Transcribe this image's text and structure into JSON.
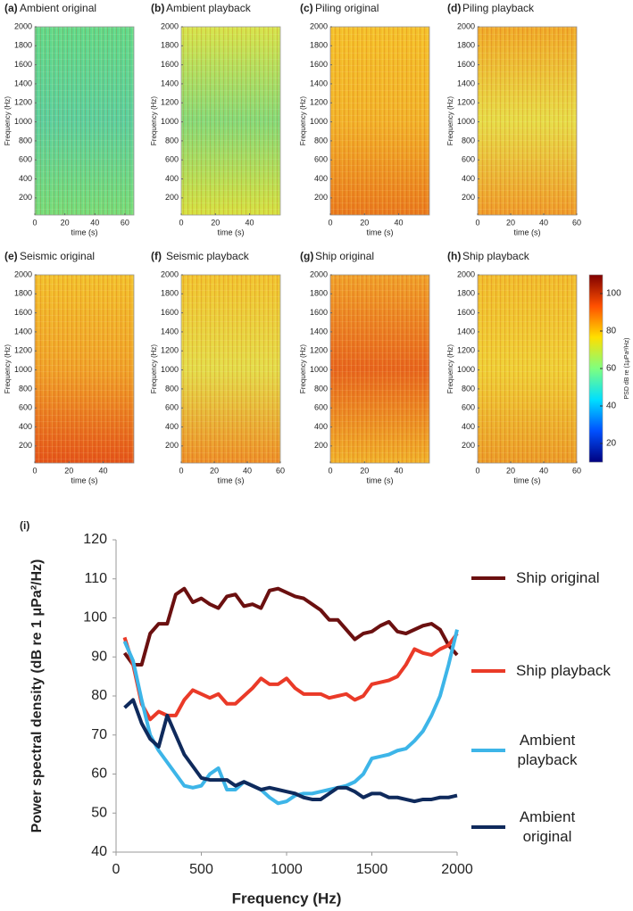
{
  "chart_data": [
    {
      "type": "spectrogram",
      "panel": "(a)",
      "title": "Ambient original",
      "xlabel": "time (s)",
      "ylabel": "Frequency (Hz)",
      "xlim": [
        0,
        66
      ],
      "xticks": [
        0,
        20,
        40,
        60
      ],
      "ylim": [
        20,
        2000
      ],
      "yticks": [
        200,
        400,
        600,
        800,
        1000,
        1200,
        1400,
        1600,
        1800,
        2000
      ],
      "colors": [
        "#5fd98a",
        "#58cfa0",
        "#74dc7a"
      ]
    },
    {
      "type": "spectrogram",
      "panel": "(b)",
      "title": "Ambient playback",
      "xlabel": "time (s)",
      "ylabel": "Frequency (Hz)",
      "xlim": [
        0,
        58
      ],
      "xticks": [
        0,
        20,
        40
      ],
      "ylim": [
        20,
        2000
      ],
      "yticks": [
        200,
        400,
        600,
        800,
        1000,
        1200,
        1400,
        1600,
        1800,
        2000
      ],
      "colors": [
        "#d7e34a",
        "#82d97a",
        "#d6e040"
      ]
    },
    {
      "type": "spectrogram",
      "panel": "(c)",
      "title": "Piling original",
      "xlabel": "time (s)",
      "ylabel": "Frequency (Hz)",
      "xlim": [
        0,
        58
      ],
      "xticks": [
        0,
        20,
        40
      ],
      "ylim": [
        20,
        2000
      ],
      "yticks": [
        200,
        400,
        600,
        800,
        1000,
        1200,
        1400,
        1600,
        1800,
        2000
      ],
      "colors": [
        "#f4c02a",
        "#f2b22a",
        "#e9791e"
      ]
    },
    {
      "type": "spectrogram",
      "panel": "(d)",
      "title": "Piling playback",
      "xlabel": "time (s)",
      "ylabel": "Frequency (Hz)",
      "xlim": [
        0,
        60
      ],
      "xticks": [
        0,
        20,
        40,
        60
      ],
      "ylim": [
        20,
        2000
      ],
      "yticks": [
        200,
        400,
        600,
        800,
        1000,
        1200,
        1400,
        1600,
        1800,
        2000
      ],
      "colors": [
        "#f0a828",
        "#e6dc48",
        "#ef9a2a"
      ]
    },
    {
      "type": "spectrogram",
      "panel": "(e)",
      "title": "Seismic original",
      "xlabel": "time (s)",
      "ylabel": "Frequency (Hz)",
      "xlim": [
        0,
        58
      ],
      "xticks": [
        0,
        20,
        40
      ],
      "ylim": [
        20,
        2000
      ],
      "yticks": [
        200,
        400,
        600,
        800,
        1000,
        1200,
        1400,
        1600,
        1800,
        2000
      ],
      "colors": [
        "#f2c02c",
        "#f0a22a",
        "#e4531a"
      ]
    },
    {
      "type": "spectrogram",
      "panel": "(f)",
      "title": "Seismic playback",
      "xlabel": "time (s)",
      "ylabel": "Frequency (Hz)",
      "xlim": [
        0,
        60
      ],
      "xticks": [
        0,
        20,
        40,
        60
      ],
      "ylim": [
        20,
        2000
      ],
      "yticks": [
        200,
        400,
        600,
        800,
        1000,
        1200,
        1400,
        1600,
        1800,
        2000
      ],
      "colors": [
        "#f1c22e",
        "#e3dc4a",
        "#ed8e28"
      ]
    },
    {
      "type": "spectrogram",
      "panel": "(g)",
      "title": "Ship original",
      "xlabel": "time (s)",
      "ylabel": "Frequency (Hz)",
      "xlim": [
        0,
        58
      ],
      "xticks": [
        0,
        20,
        40
      ],
      "ylim": [
        20,
        2000
      ],
      "yticks": [
        200,
        400,
        600,
        800,
        1000,
        1200,
        1400,
        1600,
        1800,
        2000
      ],
      "colors": [
        "#f0a02a",
        "#e7651e",
        "#f0b02a"
      ]
    },
    {
      "type": "spectrogram",
      "panel": "(h)",
      "title": "Ship playback",
      "xlabel": "time (s)",
      "ylabel": "Frequency (Hz)",
      "xlim": [
        0,
        60
      ],
      "xticks": [
        0,
        20,
        40,
        60
      ],
      "ylim": [
        20,
        2000
      ],
      "yticks": [
        200,
        400,
        600,
        800,
        1000,
        1200,
        1400,
        1600,
        1800,
        2000
      ],
      "colors": [
        "#f1bb2c",
        "#efcf36",
        "#eb9a28"
      ]
    },
    {
      "type": "colorbar",
      "label": "PSD dB re (1μPa²/Hz)",
      "ylim": [
        10,
        110
      ],
      "yticks": [
        20,
        40,
        60,
        80,
        100
      ],
      "colors": [
        "#00007f",
        "#0050ff",
        "#00dfff",
        "#7fff7f",
        "#ffdf00",
        "#ff5000",
        "#7f0000"
      ]
    },
    {
      "type": "line",
      "panel": "(i)",
      "xlabel": "Frequency (Hz)",
      "ylabel": "Power spectral density  (dB re 1 μPa²/Hz)",
      "xlim": [
        0,
        2000
      ],
      "xticks": [
        0,
        500,
        1000,
        1500,
        2000
      ],
      "ylim": [
        40,
        120
      ],
      "yticks": [
        40,
        50,
        60,
        70,
        80,
        90,
        100,
        110,
        120
      ],
      "grid": false,
      "x": [
        50,
        100,
        150,
        200,
        250,
        300,
        350,
        400,
        450,
        500,
        550,
        600,
        650,
        700,
        750,
        800,
        850,
        900,
        950,
        1000,
        1050,
        1100,
        1150,
        1200,
        1250,
        1300,
        1350,
        1400,
        1450,
        1500,
        1550,
        1600,
        1650,
        1700,
        1750,
        1800,
        1850,
        1900,
        1950,
        2000
      ],
      "series": [
        {
          "name": "Ship original",
          "color": "#6b1010",
          "values": [
            91,
            88,
            88,
            96,
            98.5,
            98.5,
            106,
            107.5,
            104,
            105,
            103.5,
            102.5,
            105.5,
            106,
            103,
            103.5,
            102.5,
            107,
            107.5,
            106.5,
            105.5,
            105,
            103.5,
            102,
            99.5,
            99.5,
            97,
            94.5,
            96,
            96.5,
            98,
            99,
            96.5,
            96,
            97,
            98,
            98.5,
            97,
            93,
            90.5
          ]
        },
        {
          "name": "Ship playback",
          "color": "#ea3a28",
          "values": [
            95,
            88,
            78,
            74,
            76,
            75,
            75,
            79,
            81.5,
            80.5,
            79.5,
            80.5,
            78,
            78,
            80,
            82,
            84.5,
            83,
            83,
            84.5,
            82,
            80.5,
            80.5,
            80.5,
            79.5,
            80,
            80.5,
            79,
            80,
            83,
            83.5,
            84,
            85,
            88,
            92,
            91,
            90.5,
            92,
            93,
            96
          ]
        },
        {
          "name": "Ambient playback",
          "color": "#3db5e8",
          "values": [
            94,
            89,
            79,
            70,
            66,
            63,
            60,
            57,
            56.5,
            57,
            60,
            61.5,
            56,
            56,
            58,
            57,
            56,
            54,
            52.5,
            53,
            54.5,
            55,
            55,
            55.5,
            56,
            56.5,
            57,
            58,
            60,
            64,
            64.5,
            65,
            66,
            66.5,
            68.5,
            71,
            75,
            80,
            88,
            97
          ]
        },
        {
          "name": "Ambient original",
          "color": "#0f2a5c",
          "values": [
            77,
            79,
            73,
            69,
            67,
            75,
            70,
            65,
            62,
            59,
            58.5,
            58.5,
            58.5,
            57,
            58,
            57,
            56,
            56.5,
            56,
            55.5,
            55,
            54,
            53.5,
            53.5,
            55,
            56.5,
            56.5,
            55.5,
            54,
            55,
            55,
            54,
            54,
            53.5,
            53,
            53.5,
            53.5,
            54,
            54,
            54.5
          ]
        }
      ]
    }
  ]
}
